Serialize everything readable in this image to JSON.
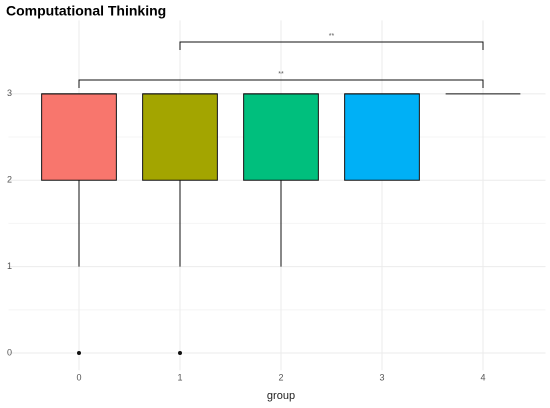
{
  "chart_data": {
    "type": "boxplot",
    "title": "Computational Thinking",
    "x_label": "group",
    "categories": [
      "0",
      "1",
      "2",
      "3",
      "4"
    ],
    "boxes": [
      {
        "low": 1,
        "q1": 2,
        "median": 3,
        "q3": 3,
        "high": 3,
        "outliers": [
          0
        ]
      },
      {
        "low": 1,
        "q1": 2,
        "median": 3,
        "q3": 3,
        "high": 3,
        "outliers": [
          0
        ]
      },
      {
        "low": 1,
        "q1": 2,
        "median": 3,
        "q3": 3,
        "high": 3,
        "outliers": []
      },
      {
        "low": 2,
        "q1": 2,
        "median": 3,
        "q3": 3,
        "high": 3,
        "outliers": []
      },
      {
        "low": 3,
        "q1": 3,
        "median": 3,
        "q3": 3,
        "high": 3,
        "outliers": []
      }
    ],
    "colors": [
      "#F8766D",
      "#A3A500",
      "#00BF7D",
      "#00B0F6"
    ],
    "annotations": [
      {
        "from": "0",
        "to": "4",
        "y": 3.16,
        "label": "**"
      },
      {
        "from": "1",
        "to": "4",
        "y": 3.6,
        "label": "**"
      }
    ],
    "ylim": [
      -0.2,
      3.85
    ],
    "yticks": [
      0,
      1,
      2,
      3
    ],
    "grid": true
  }
}
